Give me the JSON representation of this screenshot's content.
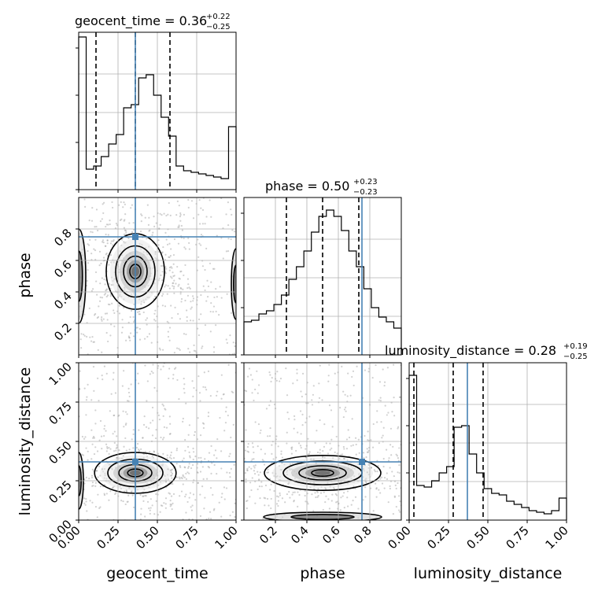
{
  "chart_data": {
    "type": "corner",
    "parameters": [
      {
        "key": "geocent_time",
        "label": "geocent_time",
        "range": [
          0.0,
          1.0
        ],
        "ticks": [
          "0.00",
          "0.25",
          "0.50",
          "0.75",
          "1.00"
        ],
        "tick_values": [
          0.0,
          0.25,
          0.5,
          0.75,
          1.0
        ]
      },
      {
        "key": "phase",
        "label": "phase",
        "range": [
          0.0,
          1.0
        ],
        "ticks": [
          "0.2",
          "0.4",
          "0.6",
          "0.8"
        ],
        "tick_values": [
          0.2,
          0.4,
          0.6,
          0.8
        ]
      },
      {
        "key": "luminosity_distance",
        "label": "luminosity_distance",
        "range": [
          0.0,
          1.0
        ],
        "ticks": [
          "0.00",
          "0.25",
          "0.50",
          "0.75",
          "1.00"
        ],
        "tick_values": [
          0.0,
          0.25,
          0.5,
          0.75,
          1.0
        ]
      }
    ],
    "titles": [
      {
        "name": "geocent_time",
        "median": "0.36",
        "plus": "+0.22",
        "minus": "−0.25"
      },
      {
        "name": "phase",
        "median": "0.50",
        "plus": "+0.23",
        "minus": "−0.23"
      },
      {
        "name": "luminosity_distance",
        "median": "0.28",
        "plus": "+0.19",
        "minus": "−0.25"
      }
    ],
    "quantiles": {
      "geocent_time": [
        0.11,
        0.36,
        0.58
      ],
      "phase": [
        0.27,
        0.5,
        0.73
      ],
      "luminosity_distance": [
        0.03,
        0.28,
        0.47
      ]
    },
    "truths": {
      "geocent_time": 0.36,
      "phase": 0.75,
      "luminosity_distance": 0.37
    },
    "histograms": {
      "geocent_time": [
        0.97,
        0.13,
        0.15,
        0.21,
        0.29,
        0.35,
        0.52,
        0.54,
        0.71,
        0.73,
        0.6,
        0.46,
        0.34,
        0.15,
        0.12,
        0.11,
        0.1,
        0.09,
        0.08,
        0.07,
        0.4
      ],
      "phase": [
        0.21,
        0.22,
        0.26,
        0.28,
        0.32,
        0.38,
        0.48,
        0.56,
        0.66,
        0.78,
        0.88,
        0.92,
        0.88,
        0.79,
        0.66,
        0.56,
        0.42,
        0.3,
        0.24,
        0.21,
        0.17
      ],
      "luminosity_distance": [
        0.92,
        0.22,
        0.21,
        0.25,
        0.3,
        0.34,
        0.59,
        0.6,
        0.42,
        0.3,
        0.2,
        0.17,
        0.16,
        0.12,
        0.1,
        0.08,
        0.06,
        0.05,
        0.04,
        0.06,
        0.14
      ]
    },
    "contours_2d": {
      "geocent_time__phase": {
        "center": [
          0.36,
          0.53
        ]
      },
      "geocent_time__luminosity_distance": {
        "center": [
          0.36,
          0.3
        ]
      },
      "phase__luminosity_distance": {
        "center": [
          0.5,
          0.3
        ]
      }
    },
    "truth_color": "#4682b4",
    "line_color": "#000000",
    "grid": true
  },
  "labels": {
    "title_geocent": "geocent_time = 0.36",
    "title_phase": "phase = 0.50",
    "title_lum": "luminosity_distance = 0.28",
    "x_geocent": "geocent_time",
    "x_phase": "phase",
    "x_lum": "luminosity_distance",
    "y_phase": "phase",
    "y_lum": "luminosity_distance"
  }
}
